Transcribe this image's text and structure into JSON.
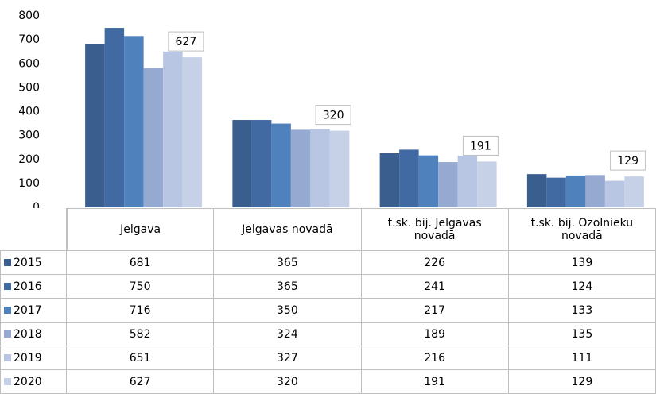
{
  "chart_data": {
    "type": "bar",
    "categories": [
      "Jelgava",
      "Jelgavas novadā",
      "t.sk. bij. Jelgavas novadā",
      "t.sk. bij. Ozolnieku novadā"
    ],
    "series": [
      {
        "name": "2015",
        "color": "#3a5f8f",
        "values": [
          681,
          365,
          226,
          139
        ]
      },
      {
        "name": "2016",
        "color": "#416aa3",
        "values": [
          750,
          365,
          241,
          124
        ]
      },
      {
        "name": "2017",
        "color": "#4f81bd",
        "values": [
          716,
          350,
          217,
          133
        ]
      },
      {
        "name": "2018",
        "color": "#95a9d1",
        "values": [
          582,
          324,
          189,
          135
        ]
      },
      {
        "name": "2019",
        "color": "#b9c6e3",
        "values": [
          651,
          327,
          216,
          111
        ]
      },
      {
        "name": "2020",
        "color": "#c6d1e8",
        "values": [
          627,
          320,
          191,
          129
        ]
      }
    ],
    "labeled_series": 5,
    "ylim": [
      0,
      800
    ],
    "yticks": [
      0,
      100,
      200,
      300,
      400,
      500,
      600,
      700,
      800
    ],
    "grid": false
  }
}
